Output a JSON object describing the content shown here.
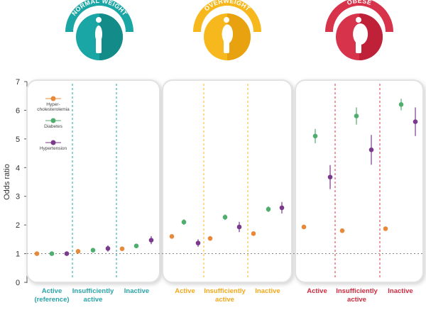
{
  "groups": [
    {
      "title": "NORMAL WEIGHT",
      "color": "#1aa6a4",
      "dark": "#138b89",
      "text_color": "#2aa4a8"
    },
    {
      "title": "OVERWEIGHT",
      "color": "#f6b81d",
      "dark": "#e9a20f",
      "text_color": "#f0a81a"
    },
    {
      "title": "OBESE",
      "color": "#d7334a",
      "dark": "#bf2139",
      "text_color": "#cc2a3f"
    }
  ],
  "icons": [
    "person-normal-icon",
    "person-overweight-icon",
    "person-obese-icon"
  ],
  "chart_data": {
    "type": "scatter",
    "ylabel": "Odds ratio",
    "ylim": [
      0,
      7
    ],
    "yticks": [
      0,
      1,
      2,
      3,
      4,
      5,
      6,
      7
    ],
    "reference_line": 1,
    "legend": {
      "placement": "top-left",
      "entries": [
        "Hyper-\ncholesterolemia",
        "Diabetes",
        "Hypertension"
      ]
    },
    "categories": [
      {
        "group": 0,
        "label": "Active\n(reference)"
      },
      {
        "group": 0,
        "label": "Insufficiently\nactive"
      },
      {
        "group": 0,
        "label": "Inactive"
      },
      {
        "group": 1,
        "label": "Active"
      },
      {
        "group": 1,
        "label": "Insufficiently\nactive"
      },
      {
        "group": 1,
        "label": "Inactive"
      },
      {
        "group": 2,
        "label": "Active"
      },
      {
        "group": 2,
        "label": "Insufficiently\nactive"
      },
      {
        "group": 2,
        "label": "Inactive"
      }
    ],
    "series": [
      {
        "name": "Hyper-\ncholesterolemia",
        "color": "#e8893a",
        "values": [
          1.0,
          1.08,
          1.17,
          1.6,
          1.53,
          1.7,
          1.93,
          1.8,
          1.87
        ],
        "lower": [
          1.0,
          1.04,
          1.13,
          1.56,
          1.49,
          1.66,
          1.88,
          1.75,
          1.82
        ],
        "upper": [
          1.0,
          1.12,
          1.21,
          1.64,
          1.57,
          1.74,
          1.98,
          1.85,
          1.92
        ]
      },
      {
        "name": "Diabetes",
        "color": "#4fae6e",
        "values": [
          1.0,
          1.12,
          1.27,
          2.1,
          2.27,
          2.55,
          5.1,
          5.8,
          6.2
        ],
        "lower": [
          1.0,
          1.07,
          1.22,
          2.0,
          2.17,
          2.45,
          4.85,
          5.5,
          6.0
        ],
        "upper": [
          1.0,
          1.17,
          1.32,
          2.2,
          2.37,
          2.65,
          5.35,
          6.1,
          6.4
        ]
      },
      {
        "name": "Hypertension",
        "color": "#7a3a8b",
        "values": [
          1.0,
          1.18,
          1.47,
          1.37,
          1.93,
          2.6,
          3.67,
          4.62,
          5.6
        ],
        "lower": [
          1.0,
          1.07,
          1.33,
          1.24,
          1.75,
          2.4,
          3.25,
          4.1,
          5.1
        ],
        "upper": [
          1.0,
          1.29,
          1.61,
          1.5,
          2.11,
          2.8,
          4.09,
          5.14,
          6.1
        ]
      }
    ]
  }
}
